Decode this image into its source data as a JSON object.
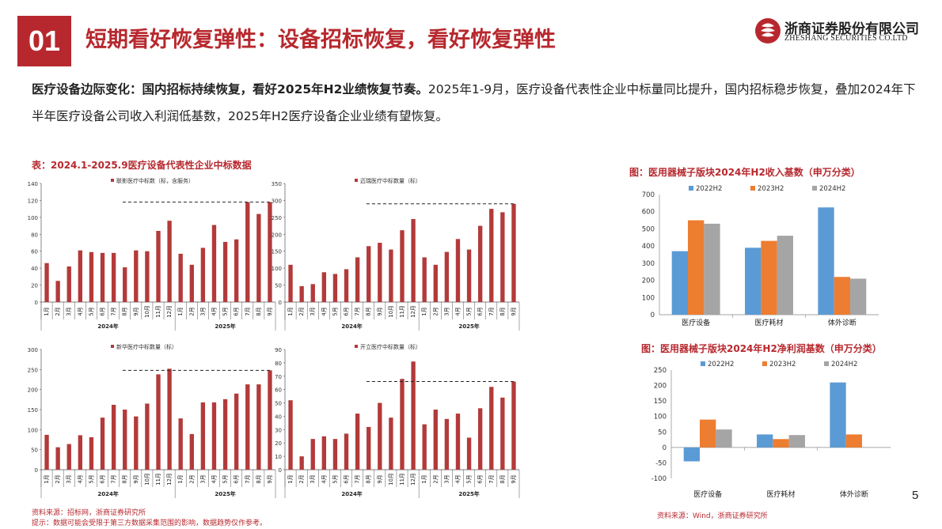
{
  "header": {
    "section_number": "01",
    "title": "短期看好恢复弹性：设备招标恢复，看好恢复弹性",
    "logo_cn": "浙商证券股份有限公司",
    "logo_en": "ZHESHANG SECURITIES CO.LTD"
  },
  "lead": {
    "bold": "医疗设备边际变化：国内招标持续恢复，看好2025年H2业绩恢复节奏。",
    "text": "2025年1-9月，医疗设备代表性企业中标量同比提升，国内招标稳步恢复，叠加2024年下半年医疗设备公司收入利润低基数，2025年H2医疗设备企业业绩有望恢复。"
  },
  "left_caption": "表：2024.1-2025.9医疗设备代表性企业中标数据",
  "right_caption_1": "图：医用器械子版块2024年H2收入基数（申万分类）",
  "right_caption_2": "图：医用器械子版块2024年H2净利润基数（申万分类）",
  "left_source": "资料来源：招标网，浙商证券研究所",
  "left_note": "提示：数据可能会受限于第三方数据采集范围的影响，数据趋势仅作参考。",
  "right_source": "资料来源：Wind，浙商证券研究所",
  "page_number": "5",
  "colors": {
    "accent": "#b7282e",
    "bar": "#b33a3a",
    "s2022": "#5b9bd5",
    "s2023": "#ed7d31",
    "s2024": "#a5a5a5"
  },
  "chart_data": [
    {
      "type": "bar",
      "legend": "联影医疗中标数（标，含服务）",
      "categories": [
        "1月",
        "2月",
        "3月",
        "4月",
        "5月",
        "6月",
        "7月",
        "8月",
        "9月",
        "10月",
        "11月",
        "12月",
        "1月",
        "2月",
        "3月",
        "4月",
        "5月",
        "6月",
        "7月",
        "8月",
        "9月"
      ],
      "groups": [
        "2024年",
        "2025年"
      ],
      "values": [
        46,
        25,
        42,
        61,
        59,
        58,
        58,
        41,
        61,
        60,
        84,
        96,
        57,
        44,
        64,
        91,
        71,
        74,
        118,
        104,
        118
      ],
      "yticks": [
        "0",
        "20",
        "40",
        "60",
        "80",
        "100",
        "120",
        "140"
      ],
      "ylim": [
        0,
        140
      ],
      "reference_line": 118
    },
    {
      "type": "bar",
      "legend": "迈瑞医疗中标数量（标）",
      "categories": [
        "1月",
        "2月",
        "3月",
        "4月",
        "5月",
        "6月",
        "7月",
        "8月",
        "9月",
        "10月",
        "11月",
        "12月",
        "1月",
        "2月",
        "3月",
        "4月",
        "5月",
        "6月",
        "7月",
        "8月",
        "9月"
      ],
      "groups": [
        "2024年",
        "2025年"
      ],
      "values": [
        110,
        47,
        53,
        88,
        83,
        97,
        132,
        165,
        175,
        155,
        212,
        245,
        132,
        110,
        148,
        186,
        155,
        225,
        275,
        265,
        290
      ],
      "yticks": [
        "0",
        "50",
        "100",
        "150",
        "200",
        "250",
        "300",
        "350"
      ],
      "ylim": [
        0,
        350
      ],
      "reference_line": 290
    },
    {
      "type": "bar",
      "legend": "新华医疗中标数量（标）",
      "categories": [
        "1月",
        "2月",
        "3月",
        "4月",
        "5月",
        "6月",
        "7月",
        "8月",
        "9月",
        "10月",
        "11月",
        "12月",
        "1月",
        "2月",
        "3月",
        "4月",
        "5月",
        "6月",
        "7月",
        "8月",
        "9月"
      ],
      "groups": [
        "2024年",
        "2025年"
      ],
      "values": [
        87,
        56,
        64,
        86,
        81,
        130,
        162,
        150,
        133,
        165,
        238,
        252,
        128,
        89,
        168,
        168,
        176,
        190,
        213,
        213,
        248
      ],
      "yticks": [
        "0",
        "50",
        "100",
        "150",
        "200",
        "250",
        "300"
      ],
      "ylim": [
        0,
        300
      ],
      "reference_line": 248
    },
    {
      "type": "bar",
      "legend": "开立医疗中标数量（标）",
      "categories": [
        "1月",
        "2月",
        "3月",
        "4月",
        "5月",
        "6月",
        "7月",
        "8月",
        "9月",
        "10月",
        "11月",
        "12月",
        "1月",
        "2月",
        "3月",
        "4月",
        "5月",
        "6月",
        "7月",
        "8月",
        "9月"
      ],
      "groups": [
        "2024年",
        "2025年"
      ],
      "values": [
        52,
        10,
        23,
        25,
        23,
        27,
        42,
        32,
        50,
        39,
        68,
        81,
        34,
        45,
        38,
        42,
        24,
        46,
        62,
        54,
        66
      ],
      "yticks": [
        "0",
        "10",
        "20",
        "30",
        "40",
        "50",
        "60",
        "70",
        "80",
        "90"
      ],
      "ylim": [
        0,
        90
      ],
      "reference_line": 66
    },
    {
      "type": "bar",
      "categories": [
        "医疗设备",
        "医疗耗材",
        "体外诊断"
      ],
      "series": [
        {
          "name": "2022H2",
          "values": [
            370,
            390,
            625
          ]
        },
        {
          "name": "2023H2",
          "values": [
            550,
            430,
            220
          ]
        },
        {
          "name": "2024H2",
          "values": [
            530,
            460,
            210
          ]
        }
      ],
      "yticks": [
        "0",
        "100",
        "200",
        "300",
        "400",
        "500",
        "600",
        "700"
      ],
      "ylim": [
        0,
        700
      ]
    },
    {
      "type": "bar",
      "categories": [
        "医疗设备",
        "医疗耗材",
        "体外诊断"
      ],
      "series": [
        {
          "name": "2022H2",
          "values": [
            -45,
            42,
            210
          ]
        },
        {
          "name": "2023H2",
          "values": [
            90,
            27,
            42
          ]
        },
        {
          "name": "2024H2",
          "values": [
            58,
            40,
            0
          ]
        }
      ],
      "yticks": [
        "-100",
        "-50",
        "0",
        "50",
        "100",
        "150",
        "200",
        "250"
      ],
      "ylim": [
        -100,
        250
      ]
    }
  ]
}
